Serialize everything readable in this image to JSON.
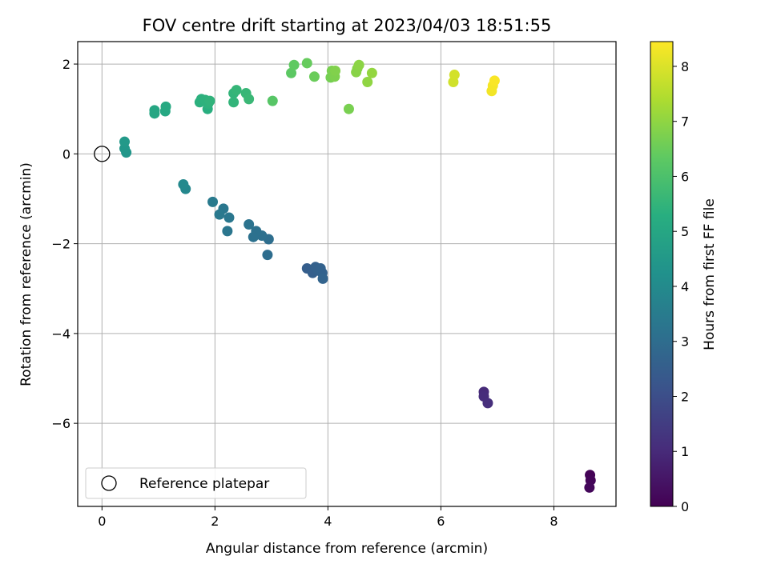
{
  "chart_data": {
    "type": "scatter",
    "title": "FOV centre drift starting at 2023/04/03 18:51:55",
    "xlabel": "Angular distance from reference (arcmin)",
    "ylabel": "Rotation from reference (arcmin)",
    "xlim": [
      -0.43,
      9.1
    ],
    "ylim": [
      -7.85,
      2.5
    ],
    "xticks": [
      0,
      2,
      4,
      6,
      8
    ],
    "yticks": [
      -6,
      -4,
      -2,
      0,
      2
    ],
    "grid": true,
    "colormap": "viridis",
    "colorbar": {
      "label": "Hours from first FF file",
      "range": [
        0,
        8.45
      ],
      "ticks": [
        0,
        1,
        2,
        3,
        4,
        5,
        6,
        7,
        8
      ]
    },
    "legend": {
      "position": "lower-left",
      "entries": [
        "Reference platepar"
      ]
    },
    "reference": {
      "name": "Reference platepar",
      "x": 0,
      "y": 0,
      "marker": "open-circle"
    },
    "series": [
      {
        "points": [
          {
            "x": 8.64,
            "y": -7.15,
            "h": 0.05
          },
          {
            "x": 8.65,
            "y": -7.27,
            "h": 0.1
          },
          {
            "x": 8.63,
            "y": -7.43,
            "h": 0.15
          },
          {
            "x": 6.76,
            "y": -5.3,
            "h": 1.0
          },
          {
            "x": 6.76,
            "y": -5.4,
            "h": 1.05
          },
          {
            "x": 6.83,
            "y": -5.55,
            "h": 1.1
          },
          {
            "x": 3.63,
            "y": -2.55,
            "h": 2.5
          },
          {
            "x": 3.73,
            "y": -2.65,
            "h": 2.55
          },
          {
            "x": 3.78,
            "y": -2.52,
            "h": 2.6
          },
          {
            "x": 3.83,
            "y": -2.6,
            "h": 2.6
          },
          {
            "x": 3.87,
            "y": -2.55,
            "h": 2.65
          },
          {
            "x": 3.9,
            "y": -2.65,
            "h": 2.65
          },
          {
            "x": 3.91,
            "y": -2.78,
            "h": 2.7
          },
          {
            "x": 2.93,
            "y": -2.25,
            "h": 3.0
          },
          {
            "x": 2.95,
            "y": -1.9,
            "h": 3.05
          },
          {
            "x": 2.83,
            "y": -1.82,
            "h": 3.1
          },
          {
            "x": 2.73,
            "y": -1.72,
            "h": 3.15
          },
          {
            "x": 2.68,
            "y": -1.85,
            "h": 3.15
          },
          {
            "x": 2.6,
            "y": -1.57,
            "h": 3.2
          },
          {
            "x": 2.22,
            "y": -1.72,
            "h": 3.3
          },
          {
            "x": 2.25,
            "y": -1.42,
            "h": 3.35
          },
          {
            "x": 2.15,
            "y": -1.22,
            "h": 3.35
          },
          {
            "x": 2.08,
            "y": -1.35,
            "h": 3.4
          },
          {
            "x": 1.96,
            "y": -1.07,
            "h": 3.45
          },
          {
            "x": 1.48,
            "y": -0.78,
            "h": 3.9
          },
          {
            "x": 1.44,
            "y": -0.68,
            "h": 3.95
          },
          {
            "x": 0.43,
            "y": 0.03,
            "h": 4.4
          },
          {
            "x": 0.4,
            "y": 0.12,
            "h": 4.45
          },
          {
            "x": 0.4,
            "y": 0.27,
            "h": 4.5
          },
          {
            "x": 0.93,
            "y": 0.9,
            "h": 5.0
          },
          {
            "x": 0.93,
            "y": 0.97,
            "h": 5.0
          },
          {
            "x": 1.12,
            "y": 0.95,
            "h": 5.05
          },
          {
            "x": 1.13,
            "y": 1.05,
            "h": 5.1
          },
          {
            "x": 1.87,
            "y": 1.0,
            "h": 5.3
          },
          {
            "x": 1.73,
            "y": 1.15,
            "h": 5.35
          },
          {
            "x": 1.76,
            "y": 1.22,
            "h": 5.35
          },
          {
            "x": 1.83,
            "y": 1.2,
            "h": 5.4
          },
          {
            "x": 1.88,
            "y": 1.12,
            "h": 5.4
          },
          {
            "x": 1.91,
            "y": 1.18,
            "h": 5.45
          },
          {
            "x": 2.33,
            "y": 1.15,
            "h": 5.5
          },
          {
            "x": 2.33,
            "y": 1.35,
            "h": 5.5
          },
          {
            "x": 2.38,
            "y": 1.42,
            "h": 5.55
          },
          {
            "x": 2.55,
            "y": 1.35,
            "h": 5.6
          },
          {
            "x": 2.6,
            "y": 1.22,
            "h": 5.65
          },
          {
            "x": 3.02,
            "y": 1.18,
            "h": 6.2
          },
          {
            "x": 3.35,
            "y": 1.8,
            "h": 6.3
          },
          {
            "x": 3.4,
            "y": 1.98,
            "h": 6.35
          },
          {
            "x": 3.63,
            "y": 2.02,
            "h": 6.45
          },
          {
            "x": 3.76,
            "y": 1.72,
            "h": 6.5
          },
          {
            "x": 4.05,
            "y": 1.7,
            "h": 6.65
          },
          {
            "x": 4.07,
            "y": 1.85,
            "h": 6.7
          },
          {
            "x": 4.12,
            "y": 1.72,
            "h": 6.75
          },
          {
            "x": 4.13,
            "y": 1.85,
            "h": 6.8
          },
          {
            "x": 4.37,
            "y": 1.0,
            "h": 6.7
          },
          {
            "x": 4.5,
            "y": 1.82,
            "h": 6.9
          },
          {
            "x": 4.52,
            "y": 1.9,
            "h": 6.9
          },
          {
            "x": 4.55,
            "y": 1.98,
            "h": 6.95
          },
          {
            "x": 4.7,
            "y": 1.6,
            "h": 7.0
          },
          {
            "x": 4.78,
            "y": 1.8,
            "h": 7.05
          },
          {
            "x": 6.22,
            "y": 1.6,
            "h": 7.85
          },
          {
            "x": 6.24,
            "y": 1.76,
            "h": 7.9
          },
          {
            "x": 6.9,
            "y": 1.4,
            "h": 8.3
          },
          {
            "x": 6.92,
            "y": 1.52,
            "h": 8.35
          },
          {
            "x": 6.95,
            "y": 1.63,
            "h": 8.4
          }
        ]
      }
    ]
  }
}
